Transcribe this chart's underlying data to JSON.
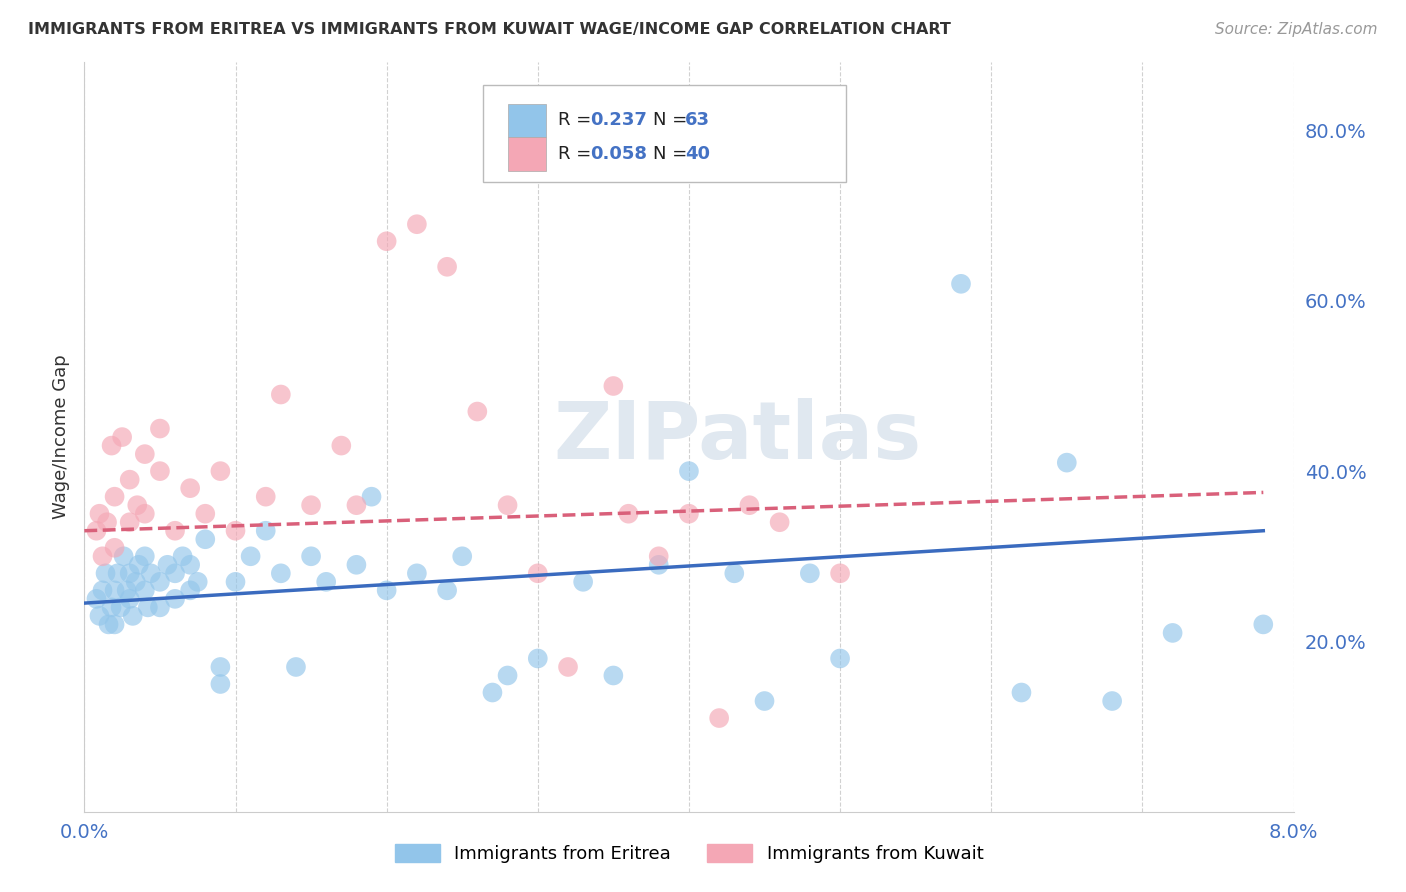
{
  "title": "IMMIGRANTS FROM ERITREA VS IMMIGRANTS FROM KUWAIT WAGE/INCOME GAP CORRELATION CHART",
  "source": "Source: ZipAtlas.com",
  "ylabel": "Wage/Income Gap",
  "xlim": [
    0.0,
    0.08
  ],
  "ylim": [
    0.0,
    0.88
  ],
  "xticks": [
    0.0,
    0.01,
    0.02,
    0.03,
    0.04,
    0.05,
    0.06,
    0.07,
    0.08
  ],
  "xticklabels": [
    "0.0%",
    "",
    "",
    "",
    "",
    "",
    "",
    "",
    "8.0%"
  ],
  "yticks": [
    0.0,
    0.2,
    0.4,
    0.6,
    0.8
  ],
  "yticklabels": [
    "",
    "20.0%",
    "40.0%",
    "60.0%",
    "80.0%"
  ],
  "watermark": "ZIPatlas",
  "legend_label_eritrea": "Immigrants from Eritrea",
  "legend_label_kuwait": "Immigrants from Kuwait",
  "color_eritrea": "#92C5EA",
  "color_kuwait": "#F4A7B5",
  "color_trendline_eritrea": "#3A6BBF",
  "color_trendline_kuwait": "#D9607A",
  "grid_color": "#CCCCCC",
  "background_color": "#FFFFFF",
  "tick_color": "#4472C4",
  "title_color": "#333333",
  "source_color": "#999999",
  "ylabel_color": "#333333",
  "eritrea_x": [
    0.0008,
    0.001,
    0.0012,
    0.0014,
    0.0016,
    0.0018,
    0.002,
    0.002,
    0.0022,
    0.0024,
    0.0026,
    0.0028,
    0.003,
    0.003,
    0.0032,
    0.0034,
    0.0036,
    0.004,
    0.004,
    0.0042,
    0.0044,
    0.005,
    0.005,
    0.0055,
    0.006,
    0.006,
    0.0065,
    0.007,
    0.007,
    0.0075,
    0.008,
    0.009,
    0.009,
    0.01,
    0.011,
    0.012,
    0.013,
    0.014,
    0.015,
    0.016,
    0.018,
    0.019,
    0.02,
    0.022,
    0.024,
    0.025,
    0.027,
    0.028,
    0.03,
    0.033,
    0.035,
    0.038,
    0.04,
    0.043,
    0.045,
    0.048,
    0.05,
    0.058,
    0.062,
    0.065,
    0.068,
    0.072,
    0.078
  ],
  "eritrea_y": [
    0.25,
    0.23,
    0.26,
    0.28,
    0.22,
    0.24,
    0.26,
    0.22,
    0.28,
    0.24,
    0.3,
    0.26,
    0.25,
    0.28,
    0.23,
    0.27,
    0.29,
    0.26,
    0.3,
    0.24,
    0.28,
    0.24,
    0.27,
    0.29,
    0.25,
    0.28,
    0.3,
    0.26,
    0.29,
    0.27,
    0.32,
    0.15,
    0.17,
    0.27,
    0.3,
    0.33,
    0.28,
    0.17,
    0.3,
    0.27,
    0.29,
    0.37,
    0.26,
    0.28,
    0.26,
    0.3,
    0.14,
    0.16,
    0.18,
    0.27,
    0.16,
    0.29,
    0.4,
    0.28,
    0.13,
    0.28,
    0.18,
    0.62,
    0.14,
    0.41,
    0.13,
    0.21,
    0.22
  ],
  "kuwait_x": [
    0.0008,
    0.001,
    0.0012,
    0.0015,
    0.0018,
    0.002,
    0.002,
    0.0025,
    0.003,
    0.003,
    0.0035,
    0.004,
    0.004,
    0.005,
    0.005,
    0.006,
    0.007,
    0.008,
    0.009,
    0.01,
    0.012,
    0.013,
    0.015,
    0.017,
    0.018,
    0.02,
    0.022,
    0.024,
    0.026,
    0.028,
    0.03,
    0.032,
    0.035,
    0.036,
    0.038,
    0.04,
    0.042,
    0.044,
    0.046,
    0.05
  ],
  "kuwait_y": [
    0.33,
    0.35,
    0.3,
    0.34,
    0.43,
    0.37,
    0.31,
    0.44,
    0.34,
    0.39,
    0.36,
    0.35,
    0.42,
    0.4,
    0.45,
    0.33,
    0.38,
    0.35,
    0.4,
    0.33,
    0.37,
    0.49,
    0.36,
    0.43,
    0.36,
    0.67,
    0.69,
    0.64,
    0.47,
    0.36,
    0.28,
    0.17,
    0.5,
    0.35,
    0.3,
    0.35,
    0.11,
    0.36,
    0.34,
    0.28
  ],
  "eritrea_trendline_x": [
    0.0,
    0.078
  ],
  "eritrea_trendline_y": [
    0.245,
    0.33
  ],
  "kuwait_trendline_x": [
    0.0,
    0.078
  ],
  "kuwait_trendline_y": [
    0.33,
    0.375
  ]
}
